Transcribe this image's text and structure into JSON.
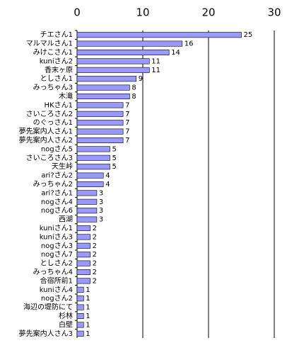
{
  "chart_data": {
    "type": "bar",
    "orientation": "horizontal",
    "categories": [
      "チエさん1",
      "マルマルさん1",
      "みけこさん1",
      "kuniさん2",
      "香末ヶ原",
      "としさん1",
      "みっちゃん3",
      "木滝",
      "HKさん1",
      "さいころさん2",
      "のぐっさん1",
      "夢先案内人さん1",
      "夢先案内人さん2",
      "nogさん5",
      "さいころさん3",
      "天生峠",
      "ari?さん2",
      "みっちゃん2",
      "ari?さん1",
      "nogさん4",
      "nogさん6",
      "西湖",
      "kuniさん1",
      "kuniさん3",
      "nogさん3",
      "nogさん7",
      "としさん2",
      "みっちゃん4",
      "合宿所前1",
      "kuniさん4",
      "nogさん2",
      "海辺の堤防にて",
      "杉林",
      "白壁",
      "夢先案内人さん3"
    ],
    "values": [
      25,
      16,
      14,
      11,
      11,
      9,
      8,
      8,
      7,
      7,
      7,
      7,
      7,
      5,
      5,
      5,
      4,
      4,
      3,
      3,
      3,
      3,
      2,
      2,
      2,
      2,
      2,
      2,
      2,
      1,
      1,
      1,
      1,
      1,
      1
    ],
    "color": "#9999ff",
    "xlim": [
      0,
      30
    ],
    "xticks": [
      0,
      10,
      20,
      30
    ],
    "grid": true
  }
}
